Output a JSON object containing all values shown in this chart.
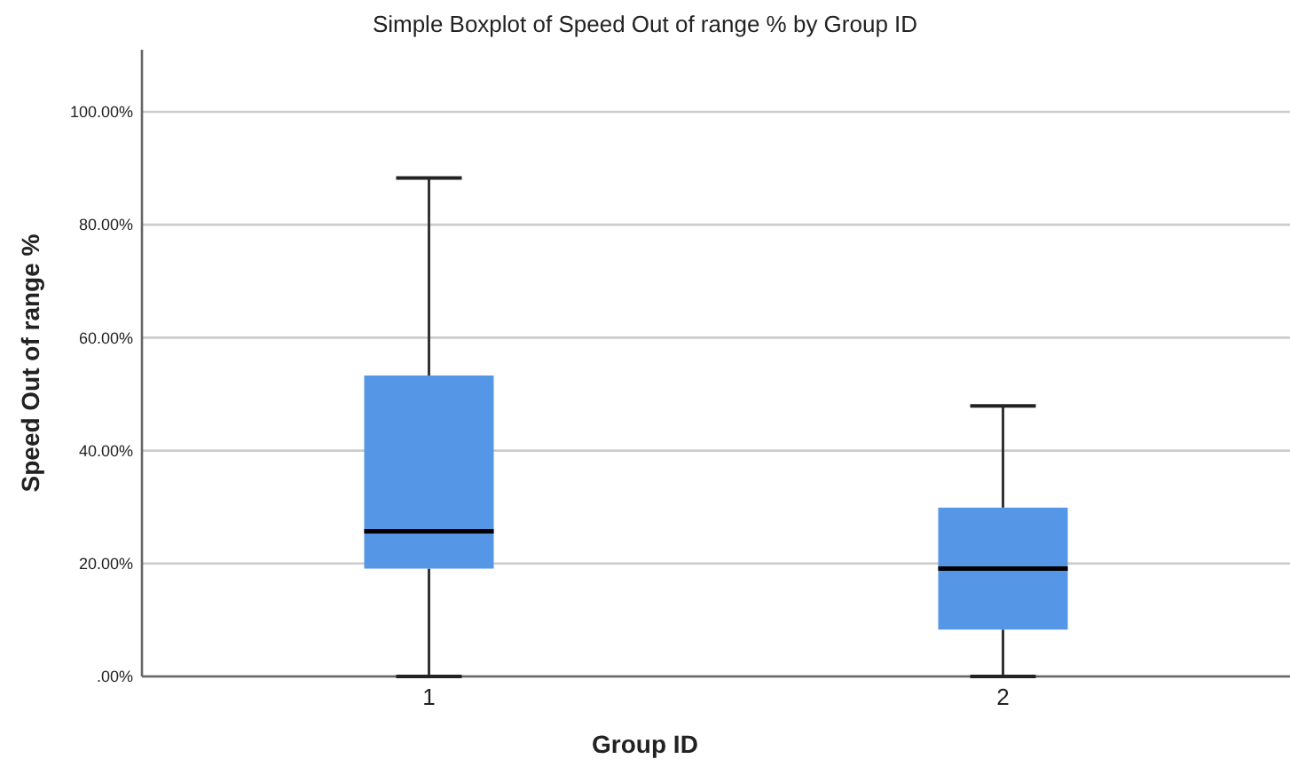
{
  "chart_data": {
    "type": "box",
    "title": "Simple Boxplot of Speed Out of range % by Group ID",
    "xlabel": "Group ID",
    "ylabel": "Speed Out of range %",
    "categories": [
      "1",
      "2"
    ],
    "color": "#5596e6",
    "boxes": [
      {
        "low": 0,
        "q1": 19.1,
        "median": 25.7,
        "q3": 53.3,
        "high": 88.3
      },
      {
        "low": 0,
        "q1": 8.3,
        "median": 19.1,
        "q3": 29.9,
        "high": 47.9
      }
    ],
    "ylim": [
      0,
      111
    ],
    "yticks": [
      {
        "value": 0,
        "label": ".00%"
      },
      {
        "value": 20,
        "label": "20.00%"
      },
      {
        "value": 40,
        "label": "40.00%"
      },
      {
        "value": 60,
        "label": "60.00%"
      },
      {
        "value": 80,
        "label": "80.00%"
      },
      {
        "value": 100,
        "label": "100.00%"
      }
    ],
    "grid": "y"
  }
}
